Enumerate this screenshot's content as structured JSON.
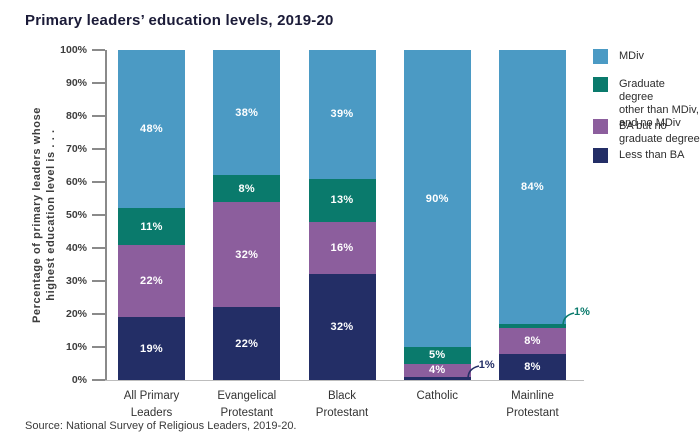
{
  "chart_data": {
    "type": "bar",
    "stacked": true,
    "title": "Primary leaders’ education levels, 2019-20",
    "ylabel": "Percentage of primary leaders whose highest education level is . . .",
    "ylabel_lines": [
      "Percentage of primary leaders whose",
      "highest education level is . . ."
    ],
    "ylim": [
      0,
      100
    ],
    "grid": false,
    "legend_position": "right",
    "y_ticks": [
      "100%",
      "90%",
      "80%",
      "70%",
      "60%",
      "50%",
      "40%",
      "30%",
      "20%",
      "10%",
      "0%"
    ],
    "categories": [
      "All Primary Leaders",
      "Evangelical Protestant",
      "Black Protestant",
      "Catholic",
      "Mainline Protestant"
    ],
    "category_lines": [
      [
        "All Primary",
        "Leaders"
      ],
      [
        "Evangelical",
        "Protestant"
      ],
      [
        "Black",
        "Protestant"
      ],
      [
        "Catholic"
      ],
      [
        "Mainline",
        "Protestant"
      ]
    ],
    "series": [
      {
        "name": "MDiv",
        "legend_lines": [
          "MDiv"
        ],
        "color": "#4B9AC4",
        "values": [
          48,
          38,
          39,
          90,
          84
        ]
      },
      {
        "name": "Graduate degree other than MDiv, and no MDiv",
        "legend_lines": [
          "Graduate degree",
          "other than MDiv,",
          "and no MDiv"
        ],
        "color": "#0A7A6C",
        "values": [
          11,
          8,
          13,
          5,
          1
        ]
      },
      {
        "name": "BA but no graduate degree",
        "legend_lines": [
          "BA but no",
          "graduate degree"
        ],
        "color": "#8C5E9D",
        "values": [
          22,
          32,
          16,
          4,
          8
        ]
      },
      {
        "name": "Less than BA",
        "legend_lines": [
          "Less than BA"
        ],
        "color": "#232E66",
        "values": [
          19,
          22,
          32,
          1,
          8
        ]
      }
    ],
    "bar_labels": [
      [
        "48%",
        "38%",
        "39%",
        "90%",
        "84%"
      ],
      [
        "11%",
        "8%",
        "13%",
        "5%",
        ""
      ],
      [
        "22%",
        "32%",
        "16%",
        "4%",
        "8%"
      ],
      [
        "19%",
        "22%",
        "32%",
        "",
        "8%"
      ]
    ],
    "callouts": [
      {
        "bar": 3,
        "series": 3,
        "text": "1%"
      },
      {
        "bar": 4,
        "series": 1,
        "text": "1%"
      }
    ]
  },
  "source": "Source: National Survey of Religious Leaders, 2019-20.",
  "colors": {
    "mdiv_blue": "#4B9AC4",
    "grad_other_teal": "#0A7A6C",
    "ba_purple": "#8C5E9D",
    "less_than_ba_navy": "#232E66",
    "title_text": "#1B1B38",
    "axis_gray": "#8A8A8A",
    "baseline_gray": "#BDBDBD"
  }
}
